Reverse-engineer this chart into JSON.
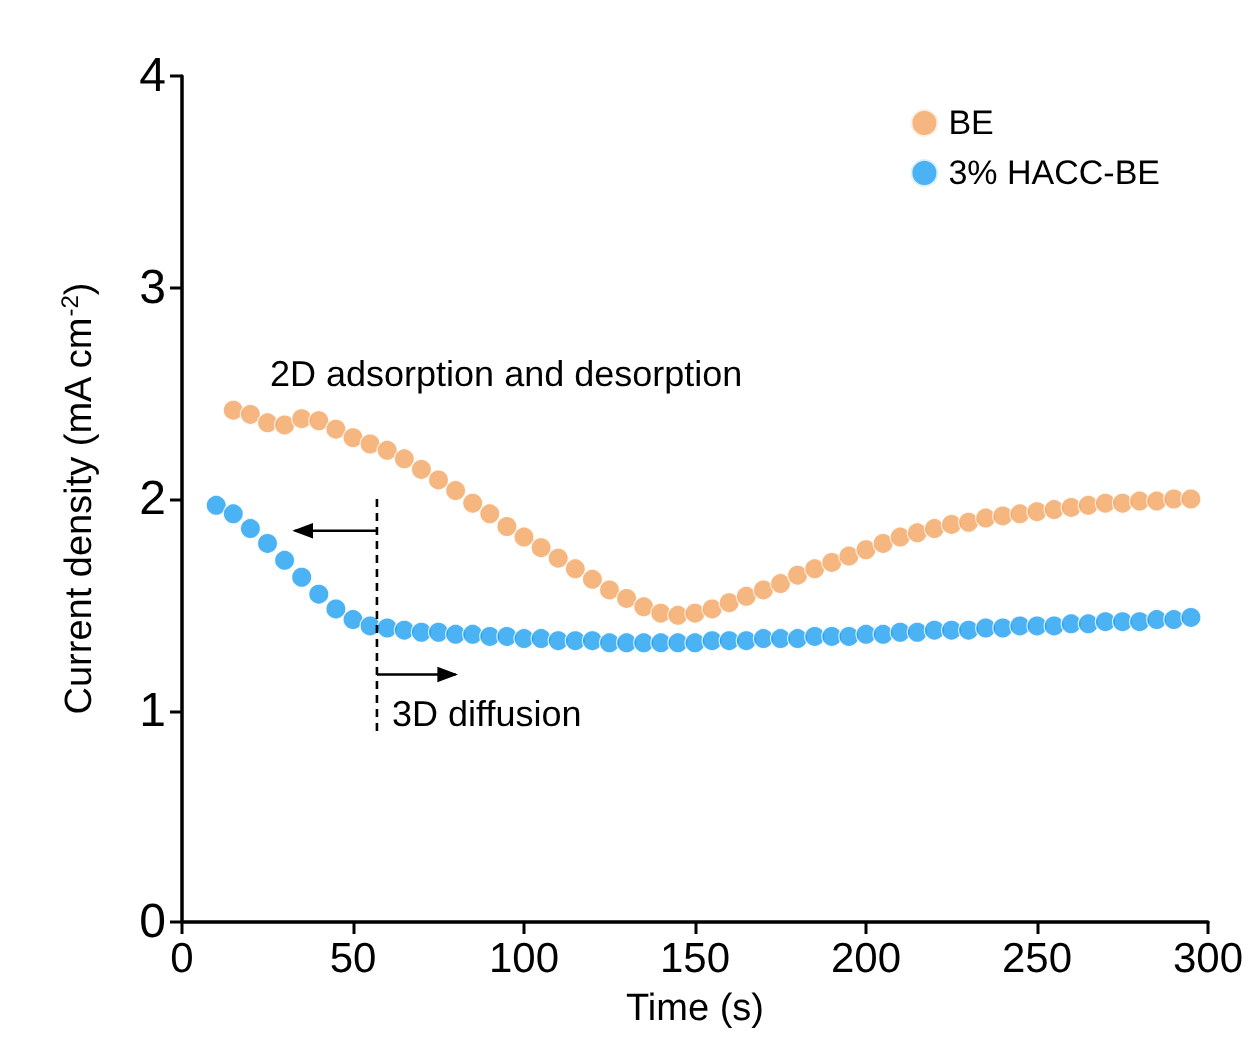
{
  "chart_data": {
    "type": "scatter",
    "xlabel": "Time (s)",
    "ylabel": "Current density (mA cm$^{-2}$)",
    "xlim": [
      0,
      300
    ],
    "xticks": [
      0,
      50,
      100,
      150,
      200,
      250,
      300
    ],
    "ylim": [
      0,
      4
    ],
    "yticks": [
      0,
      1,
      2,
      3,
      4
    ],
    "grid": false,
    "legend": "top right",
    "marker": "circle",
    "annotations": [
      "2D adsorption and desorption",
      "3D diffusion"
    ],
    "series": [
      {
        "name": "BE",
        "color": "#f4a460",
        "x": [
          15,
          20,
          25,
          30,
          35,
          40,
          45,
          50,
          55,
          60,
          65,
          70,
          75,
          80,
          85,
          90,
          95,
          100,
          105,
          110,
          115,
          120,
          125,
          130,
          135,
          140,
          145,
          150,
          155,
          160,
          165,
          170,
          175,
          180,
          185,
          190,
          195,
          200,
          205,
          210,
          215,
          220,
          225,
          230,
          235,
          240,
          245,
          250,
          255,
          260,
          265,
          270,
          275,
          280,
          285,
          290,
          295
        ],
        "values": [
          2.42,
          2.4,
          2.36,
          2.35,
          2.38,
          2.37,
          2.33,
          2.29,
          2.26,
          2.23,
          2.19,
          2.14,
          2.09,
          2.04,
          1.98,
          1.93,
          1.87,
          1.82,
          1.77,
          1.72,
          1.67,
          1.62,
          1.57,
          1.53,
          1.49,
          1.46,
          1.45,
          1.46,
          1.48,
          1.51,
          1.54,
          1.57,
          1.6,
          1.64,
          1.67,
          1.7,
          1.73,
          1.76,
          1.79,
          1.82,
          1.84,
          1.86,
          1.88,
          1.89,
          1.91,
          1.92,
          1.93,
          1.94,
          1.95,
          1.96,
          1.97,
          1.98,
          1.98,
          1.99,
          1.99,
          2.0,
          2.0
        ]
      },
      {
        "name": "3% HACC-BE",
        "color": "#1e9ff0",
        "x": [
          10,
          15,
          20,
          25,
          30,
          35,
          40,
          45,
          50,
          55,
          60,
          65,
          70,
          75,
          80,
          85,
          90,
          95,
          100,
          105,
          110,
          115,
          120,
          125,
          130,
          135,
          140,
          145,
          150,
          155,
          160,
          165,
          170,
          175,
          180,
          185,
          190,
          195,
          200,
          205,
          210,
          215,
          220,
          225,
          230,
          235,
          240,
          245,
          250,
          255,
          260,
          265,
          270,
          275,
          280,
          285,
          290,
          295
        ],
        "values": [
          1.97,
          1.93,
          1.86,
          1.79,
          1.71,
          1.63,
          1.55,
          1.48,
          1.43,
          1.4,
          1.39,
          1.38,
          1.37,
          1.37,
          1.36,
          1.36,
          1.35,
          1.35,
          1.34,
          1.34,
          1.33,
          1.33,
          1.33,
          1.32,
          1.32,
          1.32,
          1.32,
          1.32,
          1.32,
          1.33,
          1.33,
          1.33,
          1.34,
          1.34,
          1.34,
          1.35,
          1.35,
          1.35,
          1.36,
          1.36,
          1.37,
          1.37,
          1.38,
          1.38,
          1.38,
          1.39,
          1.39,
          1.4,
          1.4,
          1.4,
          1.41,
          1.41,
          1.42,
          1.42,
          1.42,
          1.43,
          1.43,
          1.44
        ]
      }
    ]
  }
}
